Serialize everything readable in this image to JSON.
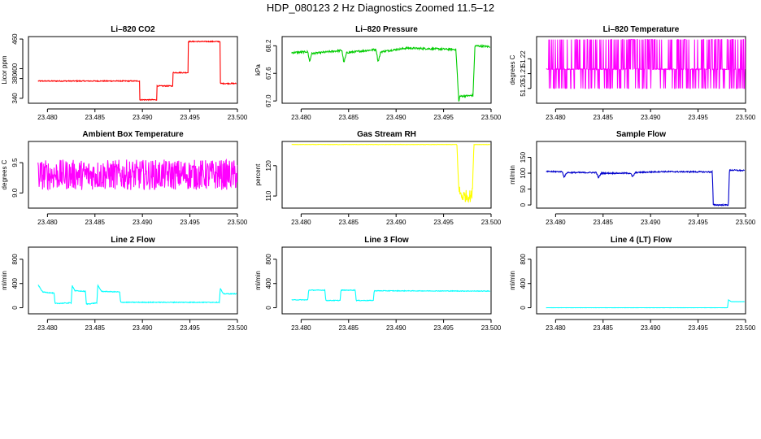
{
  "page": {
    "title": "HDP_080123  2 Hz Diagnostics Zoomed 11.5–12"
  },
  "chart_data": [
    {
      "type": "line",
      "title": "Li–820 CO2",
      "ylabel": "Licor ppm",
      "color": "#ff0000",
      "xlim": [
        23.478,
        23.5
      ],
      "ylim": [
        330,
        465
      ],
      "xticks": [
        "23.480",
        "23.485",
        "23.490",
        "23.495",
        "23.500"
      ],
      "yticks": [
        "340",
        "380",
        "400",
        "460"
      ],
      "ytick_values": [
        340,
        380,
        400,
        460
      ],
      "x": [
        23.479,
        23.4897,
        23.4897,
        23.4915,
        23.4915,
        23.4932,
        23.4932,
        23.4948,
        23.4948,
        23.4982,
        23.4982,
        23.4999
      ],
      "y": [
        375,
        375,
        337,
        337,
        365,
        365,
        392,
        392,
        455,
        455,
        370,
        370
      ],
      "noise": 1
    },
    {
      "type": "line",
      "title": "Li–820 Pressure",
      "ylabel": "kPa",
      "color": "#00cc00",
      "xlim": [
        23.478,
        23.5
      ],
      "ylim": [
        66.95,
        68.4
      ],
      "xticks": [
        "23.480",
        "23.485",
        "23.490",
        "23.495",
        "23.500"
      ],
      "yticks": [
        "67.0",
        "67.6",
        "68.2"
      ],
      "ytick_values": [
        67.0,
        67.6,
        68.2
      ],
      "x": [
        23.479,
        23.4807,
        23.4809,
        23.4811,
        23.4843,
        23.4845,
        23.4848,
        23.4879,
        23.4881,
        23.4884,
        23.4911,
        23.4963,
        23.4966,
        23.4967,
        23.4981,
        23.4983,
        23.4999
      ],
      "y": [
        68.05,
        68.07,
        67.85,
        68.03,
        68.1,
        67.83,
        68.05,
        68.12,
        67.85,
        68.07,
        68.15,
        68.12,
        66.98,
        67.1,
        67.12,
        68.2,
        68.18
      ],
      "noise": 0.02
    },
    {
      "type": "line",
      "title": "Li–820 Temperature",
      "ylabel": "degrees C",
      "color": "#ff00ff",
      "xlim": [
        23.478,
        23.5
      ],
      "ylim": [
        51.19,
        51.235
      ],
      "xticks": [
        "23.480",
        "23.485",
        "23.490",
        "23.495",
        "23.500"
      ],
      "yticks": [
        "51.20",
        "51.21",
        "51.22"
      ],
      "ytick_values": [
        51.2,
        51.21,
        51.22
      ],
      "x": [
        23.479,
        23.5
      ],
      "y": [
        51.2,
        51.2
      ],
      "bistable": [
        51.2,
        51.213,
        51.233
      ],
      "noise": 0
    },
    {
      "type": "line",
      "title": "Ambient Box Temperature",
      "ylabel": "degrees C",
      "color": "#ff00ff",
      "xlim": [
        23.478,
        23.5
      ],
      "ylim": [
        8.75,
        9.85
      ],
      "xticks": [
        "23.480",
        "23.485",
        "23.490",
        "23.495",
        "23.500"
      ],
      "yticks": [
        "9.0",
        "9.5"
      ],
      "ytick_values": [
        9.0,
        9.5
      ],
      "x": [
        23.479,
        23.5
      ],
      "y": [
        9.3,
        9.3
      ],
      "noise": 0.25
    },
    {
      "type": "line",
      "title": "Gas Stream RH",
      "ylabel": "percent",
      "color": "#ffff00",
      "xlim": [
        23.478,
        23.5
      ],
      "ylim": [
        106,
        128
      ],
      "xticks": [
        "23.480",
        "23.485",
        "23.490",
        "23.495",
        "23.500"
      ],
      "yticks": [
        "110",
        "120"
      ],
      "ytick_values": [
        110,
        120
      ],
      "x": [
        23.479,
        23.4964,
        23.4966,
        23.4969,
        23.498,
        23.4982,
        23.4999
      ],
      "y": [
        127,
        127,
        112,
        110,
        110,
        127,
        127
      ],
      "noisy_range": [
        23.4966,
        23.4981
      ],
      "noise": 2
    },
    {
      "type": "line",
      "title": "Sample Flow",
      "ylabel": "ml/min",
      "color": "#0000cc",
      "xlim": [
        23.478,
        23.5
      ],
      "ylim": [
        -10,
        200
      ],
      "xticks": [
        "23.480",
        "23.485",
        "23.490",
        "23.495",
        "23.500"
      ],
      "yticks": [
        "0",
        "50",
        "100",
        "150"
      ],
      "ytick_values": [
        0,
        50,
        100,
        150
      ],
      "x": [
        23.479,
        23.4807,
        23.4809,
        23.4812,
        23.4843,
        23.4845,
        23.4848,
        23.4879,
        23.4881,
        23.4884,
        23.4911,
        23.4965,
        23.4966,
        23.4982,
        23.4983,
        23.4999
      ],
      "y": [
        105,
        105,
        88,
        102,
        102,
        85,
        100,
        100,
        88,
        102,
        105,
        104,
        0,
        0,
        110,
        108
      ],
      "noise": 2
    },
    {
      "type": "line",
      "title": "Line 2 Flow",
      "ylabel": "ml/min",
      "color": "#00ffff",
      "xlim": [
        23.478,
        23.5
      ],
      "ylim": [
        -100,
        1000
      ],
      "xticks": [
        "23.480",
        "23.485",
        "23.490",
        "23.495",
        "23.500"
      ],
      "yticks": [
        "0",
        "400",
        "800"
      ],
      "ytick_values": [
        0,
        400,
        800
      ],
      "x": [
        23.479,
        23.4795,
        23.4807,
        23.4808,
        23.4825,
        23.4826,
        23.4829,
        23.484,
        23.4841,
        23.4852,
        23.4853,
        23.4857,
        23.4876,
        23.4877,
        23.4981,
        23.4982,
        23.4985,
        23.4999
      ],
      "y": [
        380,
        260,
        240,
        70,
        80,
        370,
        280,
        270,
        60,
        80,
        370,
        270,
        260,
        90,
        90,
        320,
        230,
        230
      ],
      "noise": 6
    },
    {
      "type": "line",
      "title": "Line 3 Flow",
      "ylabel": "ml/min",
      "color": "#00ffff",
      "xlim": [
        23.478,
        23.5
      ],
      "ylim": [
        -100,
        1000
      ],
      "xticks": [
        "23.480",
        "23.485",
        "23.490",
        "23.495",
        "23.500"
      ],
      "yticks": [
        "0",
        "400",
        "800"
      ],
      "ytick_values": [
        0,
        400,
        800
      ],
      "x": [
        23.479,
        23.4807,
        23.4808,
        23.4825,
        23.4826,
        23.4841,
        23.4842,
        23.4857,
        23.4858,
        23.4876,
        23.4877,
        23.4999
      ],
      "y": [
        130,
        130,
        290,
        290,
        120,
        120,
        290,
        290,
        120,
        120,
        280,
        275
      ],
      "noise": 5
    },
    {
      "type": "line",
      "title": "Line 4 (LT) Flow",
      "ylabel": "ml/min",
      "color": "#00ffff",
      "xlim": [
        23.478,
        23.5
      ],
      "ylim": [
        -100,
        1000
      ],
      "xticks": [
        "23.480",
        "23.485",
        "23.490",
        "23.495",
        "23.500"
      ],
      "yticks": [
        "0",
        "400",
        "800"
      ],
      "ytick_values": [
        0,
        400,
        800
      ],
      "x": [
        23.479,
        23.4981,
        23.4982,
        23.4985,
        23.4999
      ],
      "y": [
        0,
        0,
        130,
        100,
        100
      ],
      "noise": 1
    }
  ]
}
